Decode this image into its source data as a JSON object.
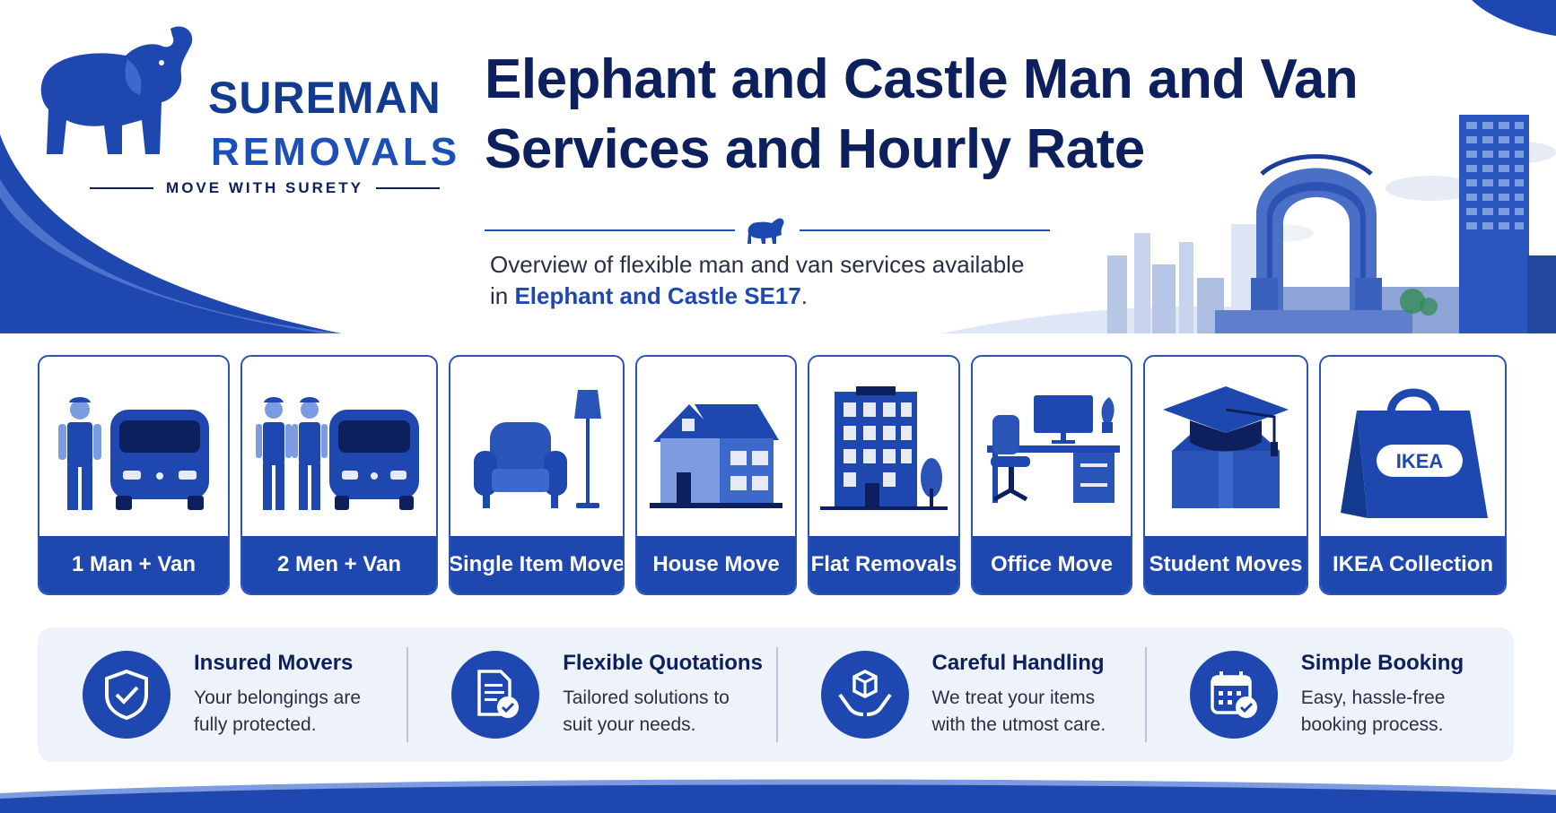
{
  "brand": {
    "name": "SUREMAN",
    "sub": "REMOVALS",
    "tagline": "MOVE WITH SURETY"
  },
  "header": {
    "title": "Elephant and Castle Man and Van Services and Hourly Rate",
    "subtitle_prefix": "Overview of flexible man and van services available in ",
    "subtitle_highlight": "Elephant and Castle SE17",
    "subtitle_suffix": "."
  },
  "services": [
    {
      "label": "1 Man + Van",
      "icon": "one-man-van-icon"
    },
    {
      "label": "2 Men + Van",
      "icon": "two-men-van-icon"
    },
    {
      "label": "Single Item Move",
      "icon": "armchair-lamp-icon"
    },
    {
      "label": "House Move",
      "icon": "house-icon"
    },
    {
      "label": "Flat Removals",
      "icon": "apartment-building-icon"
    },
    {
      "label": "Office Move",
      "icon": "office-desk-icon"
    },
    {
      "label": "Student Moves",
      "icon": "graduation-cap-box-icon"
    },
    {
      "label": "IKEA Collection",
      "icon": "ikea-bag-icon",
      "bag_text": "IKEA"
    }
  ],
  "features": [
    {
      "title": "Insured Movers",
      "desc": "Your belongings are fully protected.",
      "icon": "shield-check-icon"
    },
    {
      "title": "Flexible Quotations",
      "desc": "Tailored solutions to suit your needs.",
      "icon": "document-check-icon"
    },
    {
      "title": "Careful Handling",
      "desc": "We treat your items with the utmost care.",
      "icon": "hands-box-icon"
    },
    {
      "title": "Simple Booking",
      "desc": "Easy, hassle-free booking process.",
      "icon": "calendar-check-icon"
    }
  ],
  "colors": {
    "primary": "#1f47b0",
    "navy": "#0d1f5c",
    "light": "#eef2fb"
  }
}
